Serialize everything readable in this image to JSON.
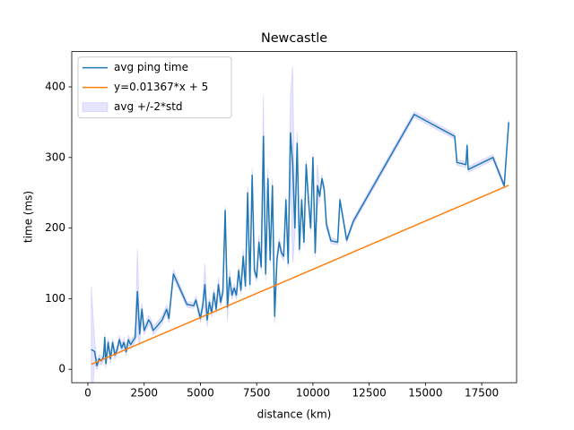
{
  "chart_data": {
    "type": "line",
    "title": "Newcastle",
    "xlabel": "distance (km)",
    "ylabel": "time (ms)",
    "xlim": [
      -717,
      19050
    ],
    "ylim": [
      -19,
      450
    ],
    "xticks": [
      0,
      2500,
      5000,
      7500,
      10000,
      12500,
      15000,
      17500
    ],
    "yticks": [
      0,
      100,
      200,
      300,
      400
    ],
    "legend": "upper left",
    "x": [
      150,
      300,
      400,
      500,
      600,
      700,
      750,
      800,
      900,
      1000,
      1100,
      1200,
      1300,
      1400,
      1500,
      1600,
      1700,
      1800,
      1900,
      2000,
      2100,
      2200,
      2300,
      2400,
      2500,
      2600,
      2700,
      2800,
      2900,
      3100,
      3300,
      3500,
      3600,
      3800,
      4400,
      4700,
      4800,
      5000,
      5100,
      5200,
      5300,
      5400,
      5500,
      5600,
      5700,
      5800,
      5900,
      6000,
      6100,
      6200,
      6300,
      6400,
      6500,
      6600,
      6700,
      6800,
      6900,
      7000,
      7100,
      7200,
      7300,
      7400,
      7500,
      7600,
      7700,
      7800,
      7900,
      8000,
      8100,
      8200,
      8300,
      8400,
      8500,
      8600,
      8700,
      8800,
      8900,
      9000,
      9100,
      9200,
      9300,
      9400,
      9500,
      9600,
      9700,
      9800,
      9900,
      10000,
      10100,
      10200,
      10300,
      10400,
      10500,
      10600,
      10800,
      11100,
      11200,
      11500,
      11800,
      14500,
      16300,
      16400,
      16800,
      16850,
      16900,
      18000,
      18500,
      18700
    ],
    "series": [
      {
        "name": "avg ping time",
        "color": "#1f77b4",
        "values": [
          28,
          25,
          5,
          15,
          12,
          18,
          45,
          8,
          38,
          15,
          38,
          20,
          28,
          42,
          30,
          38,
          25,
          42,
          35,
          40,
          45,
          110,
          50,
          85,
          55,
          62,
          70,
          65,
          55,
          62,
          70,
          85,
          72,
          135,
          92,
          90,
          98,
          72,
          90,
          120,
          70,
          95,
          80,
          108,
          85,
          120,
          95,
          110,
          225,
          88,
          130,
          105,
          115,
          105,
          140,
          112,
          160,
          118,
          250,
          120,
          275,
          140,
          130,
          180,
          145,
          330,
          135,
          270,
          155,
          260,
          75,
          155,
          180,
          165,
          160,
          240,
          150,
          335,
          290,
          200,
          320,
          170,
          240,
          180,
          290,
          240,
          200,
          300,
          165,
          260,
          245,
          270,
          255,
          205,
          182,
          180,
          240,
          183,
          210,
          361,
          330,
          293,
          290,
          317,
          283,
          300,
          260,
          350
        ]
      },
      {
        "name": "y=0.01367*x + 5",
        "color": "#ff7f0e",
        "x": [
          150,
          18700
        ],
        "values": [
          7,
          260.6
        ]
      },
      {
        "name": "avg +/-2*std",
        "color": "#0000ff",
        "opacity": 0.1,
        "std": [
          45,
          8,
          3,
          3,
          3,
          3,
          3,
          3,
          3,
          3,
          3,
          3,
          3,
          3,
          3,
          3,
          3,
          3,
          3,
          3,
          3,
          30,
          8,
          5,
          3,
          3,
          3,
          3,
          3,
          3,
          3,
          3,
          3,
          3,
          2,
          2,
          3,
          3,
          3,
          15,
          5,
          3,
          3,
          3,
          3,
          5,
          3,
          3,
          3,
          10,
          5,
          3,
          3,
          3,
          3,
          3,
          5,
          3,
          5,
          3,
          5,
          3,
          3,
          5,
          3,
          30,
          5,
          8,
          3,
          5,
          5,
          3,
          3,
          3,
          3,
          3,
          3,
          25,
          70,
          5,
          8,
          3,
          3,
          3,
          3,
          3,
          3,
          3,
          3,
          15,
          3,
          3,
          3,
          3,
          2,
          2,
          2,
          2,
          2,
          2,
          2,
          2,
          2,
          2,
          2,
          2,
          2,
          2
        ]
      }
    ]
  }
}
